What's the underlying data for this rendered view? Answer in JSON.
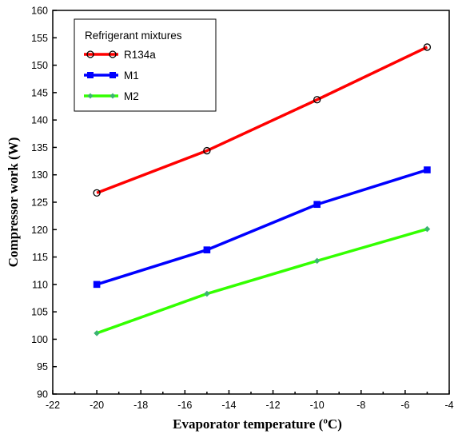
{
  "chart_data": {
    "type": "line",
    "xlabel": "Evaporator temperature (ºC)",
    "ylabel": "Compressor work (W)",
    "xlim": [
      -22,
      -4
    ],
    "ylim": [
      90,
      160
    ],
    "xticks": [
      -22,
      -20,
      -18,
      -16,
      -14,
      -12,
      -10,
      -8,
      -6,
      -4
    ],
    "yticks": [
      90,
      95,
      100,
      105,
      110,
      115,
      120,
      125,
      130,
      135,
      140,
      145,
      150,
      155,
      160
    ],
    "grid": false,
    "legend": {
      "title": "Refrigerant mixtures",
      "placement": "top-left"
    },
    "series": [
      {
        "name": "R134a",
        "color": "#ff0000",
        "marker": "circle",
        "x": [
          -20,
          -15,
          -10,
          -5
        ],
        "y": [
          126.7,
          134.4,
          143.7,
          153.3
        ]
      },
      {
        "name": "M1",
        "color": "#0000ff",
        "marker": "square",
        "x": [
          -20,
          -15,
          -10,
          -5
        ],
        "y": [
          110.0,
          116.3,
          124.6,
          130.9
        ]
      },
      {
        "name": "M2",
        "color": "#33ff00",
        "marker": "diamond",
        "markerColor": "#3cb371",
        "x": [
          -20,
          -15,
          -10,
          -5
        ],
        "y": [
          101.1,
          108.3,
          114.3,
          120.1
        ]
      }
    ]
  }
}
